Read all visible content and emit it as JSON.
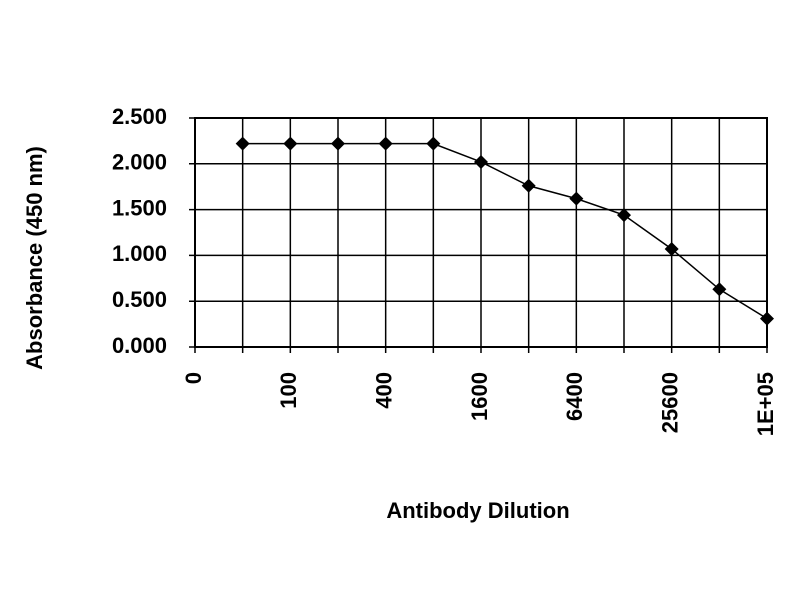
{
  "chart_data": {
    "type": "line",
    "x_label": "Antibody Dilution",
    "y_label": "Absorbance (450 nm)",
    "categories": [
      "0",
      null,
      "100",
      null,
      "400",
      null,
      "1600",
      null,
      "6400",
      null,
      "25600",
      null,
      "1E+05"
    ],
    "values": [
      null,
      2.22,
      2.22,
      2.22,
      2.22,
      2.22,
      2.02,
      1.76,
      1.62,
      1.44,
      1.07,
      0.63,
      0.31
    ],
    "color": "#000000",
    "ylim": [
      0,
      2.5
    ],
    "yticks": [
      {
        "value": 0,
        "label": "0.000"
      },
      {
        "value": 0.5,
        "label": "0.500"
      },
      {
        "value": 1,
        "label": "1.000"
      },
      {
        "value": 1.5,
        "label": "1.500"
      },
      {
        "value": 2,
        "label": "2.000"
      },
      {
        "value": 2.5,
        "label": "2.500"
      }
    ],
    "grid": true
  }
}
